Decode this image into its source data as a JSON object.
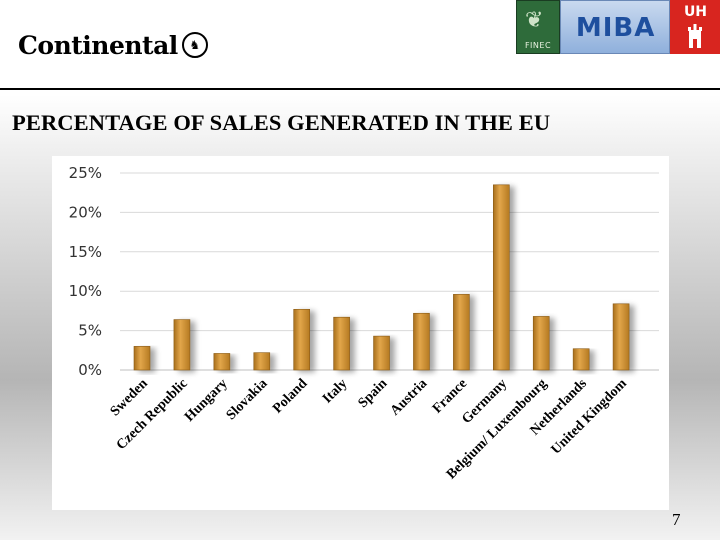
{
  "header": {
    "brand": "Continental",
    "logos": {
      "finec": "FINEC",
      "miba": "MIBA",
      "uh": "UH"
    }
  },
  "slide": {
    "title": "PERCENTAGE OF SALES GENERATED IN THE EU",
    "page_number": "7"
  },
  "colors": {
    "bar": "#c98b2a",
    "bar_highlight": "#e2a64a",
    "grid": "#d9d9d9",
    "title": "#000000"
  },
  "chart_data": {
    "type": "bar",
    "title": "",
    "xlabel": "",
    "ylabel": "",
    "categories": [
      "Sweden",
      "Czech Republic",
      "Hungary",
      "Slovakia",
      "Poland",
      "Italy",
      "Spain",
      "Austria",
      "France",
      "Germany",
      "Belgium/ Luxembourg",
      "Netherlands",
      "United Kingdom"
    ],
    "values": [
      3.0,
      6.4,
      2.1,
      2.2,
      7.7,
      6.7,
      4.3,
      7.2,
      9.6,
      23.5,
      6.8,
      2.7,
      8.4
    ],
    "ylim": [
      0,
      25
    ],
    "yticks": [
      "0%",
      "5%",
      "10%",
      "15%",
      "20%",
      "25%"
    ],
    "ytick_values": [
      0,
      5,
      10,
      15,
      20,
      25
    ],
    "grid": true,
    "legend": "none"
  }
}
